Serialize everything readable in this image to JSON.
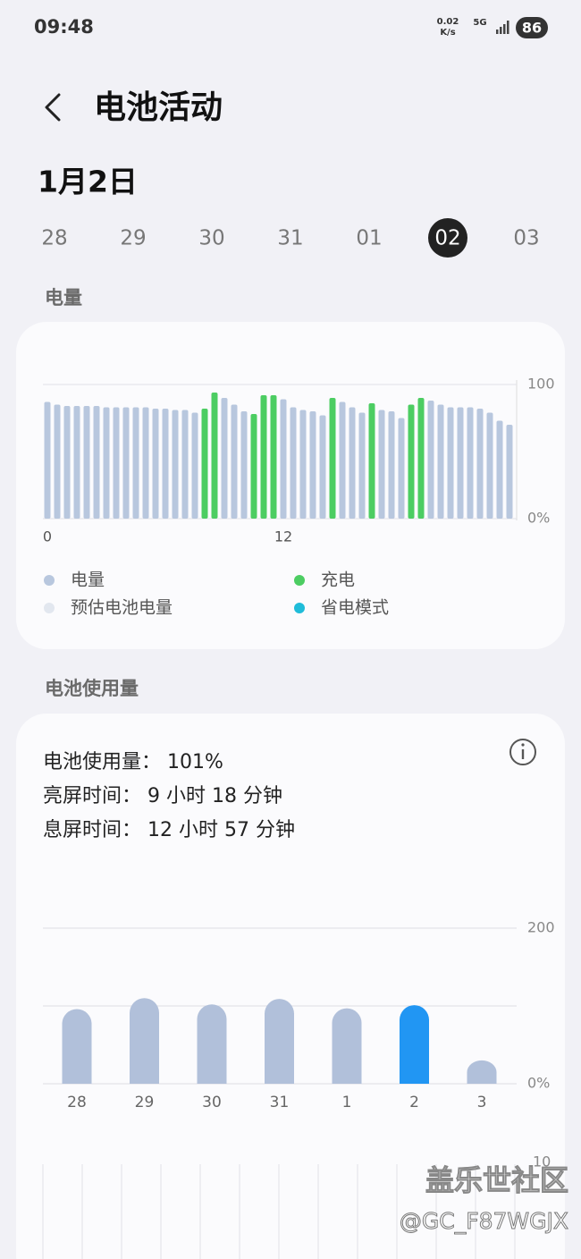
{
  "status_bar": {
    "time": "09:48",
    "speed_value": "0.02",
    "speed_unit": "K/s",
    "network": "5G",
    "battery": "86"
  },
  "header": {
    "title": "电池活动"
  },
  "date": "1月2日",
  "days": {
    "items": [
      "28",
      "29",
      "30",
      "31",
      "01",
      "02",
      "03"
    ],
    "selected": 5
  },
  "usage_summary": [
    "电池使用量：  101%",
    "亮屏时间：  9 小时 18 分钟",
    "息屏时间：  12 小时 57 分钟"
  ],
  "watermark": {
    "site": "盖乐世社区",
    "user": "@GC_F87WGJX"
  },
  "chart_data": [
    {
      "type": "bar",
      "title": "电量",
      "x": [
        0,
        0.5,
        1,
        1.5,
        2,
        2.5,
        3,
        3.5,
        4,
        4.5,
        5,
        5.5,
        6,
        6.5,
        7,
        7.5,
        8,
        8.5,
        9,
        9.5,
        10,
        10.5,
        11,
        11.5,
        12,
        12.5,
        13,
        13.5,
        14,
        14.5,
        15,
        15.5,
        16,
        16.5,
        17,
        17.5,
        18,
        18.5,
        19,
        19.5,
        20,
        20.5,
        21,
        21.5,
        22,
        22.5,
        23,
        23.5
      ],
      "series": [
        {
          "name": "电量",
          "color": "#b8c7de",
          "values": [
            87,
            85,
            84,
            84,
            84,
            84,
            83,
            83,
            83,
            83,
            83,
            82,
            82,
            81,
            81,
            79,
            null,
            null,
            90,
            85,
            80,
            null,
            null,
            null,
            89,
            83,
            81,
            80,
            77,
            null,
            87,
            83,
            79,
            null,
            81,
            80,
            75,
            null,
            null,
            88,
            85,
            83,
            83,
            83,
            82,
            79,
            73,
            70
          ]
        },
        {
          "name": "充电",
          "color": "#4ccd62",
          "values": [
            null,
            null,
            null,
            null,
            null,
            null,
            null,
            null,
            null,
            null,
            null,
            null,
            null,
            null,
            null,
            null,
            82,
            94,
            null,
            null,
            null,
            78,
            92,
            92,
            null,
            null,
            null,
            null,
            null,
            90,
            null,
            null,
            null,
            86,
            null,
            null,
            null,
            85,
            90,
            null,
            null,
            null,
            null,
            null,
            null,
            null,
            null,
            null
          ]
        },
        {
          "name": "预估电池电量",
          "color": "#e2e7ef",
          "values": [
            null,
            null,
            null,
            null,
            null,
            null,
            null,
            null,
            null,
            null,
            null,
            null,
            null,
            null,
            null,
            null,
            null,
            null,
            null,
            null,
            null,
            null,
            null,
            null,
            null,
            null,
            null,
            null,
            null,
            null,
            null,
            null,
            null,
            null,
            null,
            null,
            null,
            null,
            null,
            null,
            null,
            null,
            null,
            null,
            null,
            null,
            null,
            null
          ]
        },
        {
          "name": "省电模式",
          "color": "#1fbcd9",
          "values": [
            null,
            null,
            null,
            null,
            null,
            null,
            null,
            null,
            null,
            null,
            null,
            null,
            null,
            null,
            null,
            null,
            null,
            null,
            null,
            null,
            null,
            null,
            null,
            null,
            null,
            null,
            null,
            null,
            null,
            null,
            null,
            null,
            null,
            null,
            null,
            null,
            null,
            null,
            null,
            null,
            null,
            null,
            null,
            null,
            null,
            null,
            null,
            null
          ]
        }
      ],
      "xlim": [
        0,
        23.5
      ],
      "xticks": [
        0,
        12
      ],
      "ylim": [
        0,
        100
      ],
      "yticks": [
        100,
        {
          "value": 0,
          "label": "0%"
        }
      ]
    },
    {
      "type": "bar",
      "title": "电池使用量",
      "categories": [
        "28",
        "29",
        "30",
        "31",
        "1",
        "2",
        "3"
      ],
      "values": [
        96,
        110,
        102,
        109,
        97,
        101,
        30
      ],
      "colors": [
        "#b1c0da",
        "#b1c0da",
        "#b1c0da",
        "#b1c0da",
        "#b1c0da",
        "#2196f3",
        "#b1c0da"
      ],
      "ylim": [
        0,
        200
      ],
      "yticks": [
        {
          "value": 0,
          "label": "0%"
        },
        200
      ],
      "ygrid": [
        0,
        100,
        200
      ]
    },
    {
      "type": "bar",
      "yticks": [
        10
      ]
    }
  ]
}
